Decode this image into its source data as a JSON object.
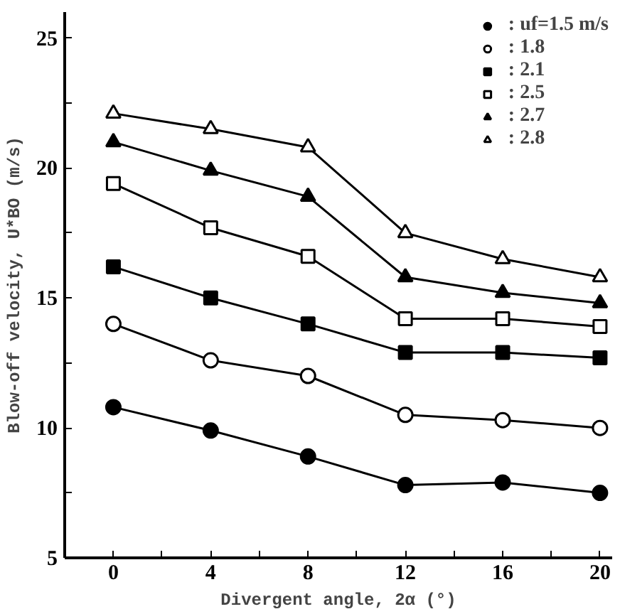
{
  "chart_data": {
    "type": "line",
    "xlabel": "Divergent angle, 2α (°)",
    "ylabel": "Blow-off velocity, U*BO (m/s)",
    "x": [
      0,
      4,
      8,
      12,
      16,
      20
    ],
    "series": [
      {
        "name": ": uf=1.5 m/s",
        "color": "#000000",
        "marker": "circle",
        "values": [
          10.8,
          9.9,
          8.9,
          7.8,
          7.9,
          7.5
        ]
      },
      {
        "name": ": 1.8",
        "color": "#000000",
        "marker": "circle_open",
        "values": [
          14.0,
          12.6,
          12.0,
          10.5,
          10.3,
          10.0
        ]
      },
      {
        "name": ": 2.1",
        "color": "#000000",
        "marker": "square",
        "values": [
          16.2,
          15.0,
          14.0,
          12.9,
          12.9,
          12.7
        ]
      },
      {
        "name": ": 2.5",
        "color": "#000000",
        "marker": "square_open",
        "values": [
          19.4,
          17.7,
          16.6,
          14.2,
          14.2,
          13.9
        ]
      },
      {
        "name": ": 2.7",
        "color": "#000000",
        "marker": "triangle",
        "values": [
          21.0,
          19.9,
          18.9,
          15.8,
          15.2,
          14.8
        ]
      },
      {
        "name": ": 2.8",
        "color": "#000000",
        "marker": "triangle_open",
        "values": [
          22.1,
          21.5,
          20.8,
          17.5,
          16.5,
          15.8
        ]
      }
    ],
    "xlim": [
      -2,
      20.5
    ],
    "ylim": [
      5,
      26
    ],
    "xticks": [
      0,
      {
        "value": 2,
        "label": null
      },
      4,
      {
        "value": 6,
        "label": null
      },
      8,
      {
        "value": 10,
        "label": null
      },
      12,
      {
        "value": 14,
        "label": null
      },
      16,
      {
        "value": 18,
        "label": null
      },
      20
    ],
    "yticks": [
      5,
      {
        "value": 7.5,
        "label": null
      },
      10,
      {
        "value": 12.5,
        "label": null
      },
      15,
      {
        "value": 17.5,
        "label": null
      },
      20,
      {
        "value": 22.5,
        "label": null
      },
      25
    ],
    "grid": false,
    "legend": "top right",
    "line_style": "solid"
  }
}
